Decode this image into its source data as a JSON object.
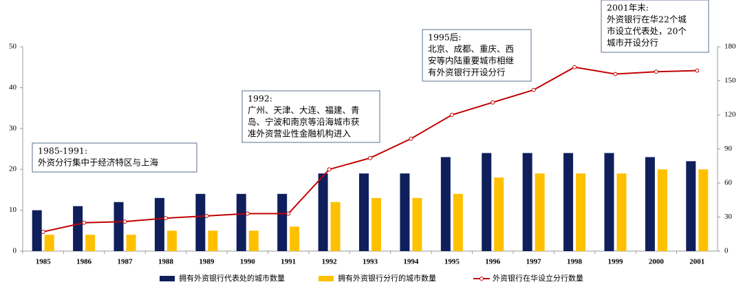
{
  "chart_data": {
    "type": "bar_line",
    "categories": [
      "1985",
      "1986",
      "1987",
      "1988",
      "1989",
      "1990",
      "1991",
      "1992",
      "1993",
      "1994",
      "1995",
      "1996",
      "1997",
      "1998",
      "1999",
      "2000",
      "2001"
    ],
    "series": [
      {
        "name": "拥有外资银行代表处的城市数量",
        "color": "#0f1f5c",
        "values": [
          10,
          11,
          12,
          13,
          14,
          14,
          14,
          19,
          19,
          19,
          23,
          24,
          24,
          24,
          24,
          23,
          22
        ]
      },
      {
        "name": "拥有外资银行分行的城市数量",
        "color": "#ffc000",
        "values": [
          4,
          4,
          4,
          5,
          5,
          5,
          6,
          12,
          13,
          13,
          14,
          18,
          19,
          19,
          19,
          20,
          20
        ]
      },
      {
        "name": "外资银行在华设立分行数量",
        "color": "#c00000",
        "axis": "y2",
        "values": [
          17,
          25,
          26,
          29,
          31,
          33,
          33,
          72,
          82,
          99,
          120,
          131,
          142,
          162,
          156,
          158,
          159
        ]
      }
    ],
    "ylim": [
      0,
      50
    ],
    "yticks": [
      0,
      10,
      20,
      30,
      40,
      50
    ],
    "y2lim": [
      0,
      180
    ],
    "y2ticks": [
      0,
      30,
      60,
      90,
      120,
      150,
      180
    ],
    "annotations": [
      {
        "lines": [
          "1985-1991:",
          "外资分行集中于经济特区与上海"
        ]
      },
      {
        "lines": [
          "1992:",
          "广州、天津、大连、福建、青",
          "岛、宁波和南京等沿海城市获",
          "准外资营业性金融机构进入"
        ]
      },
      {
        "lines": [
          "1995后:",
          "北京、成都、重庆、西",
          "安等内陆重要城市相继",
          "有外资银行开设分行"
        ]
      },
      {
        "lines": [
          "2001年末:",
          "外资银行在华22个城",
          "市设立代表处，20个",
          "城市开设分行"
        ]
      }
    ]
  }
}
